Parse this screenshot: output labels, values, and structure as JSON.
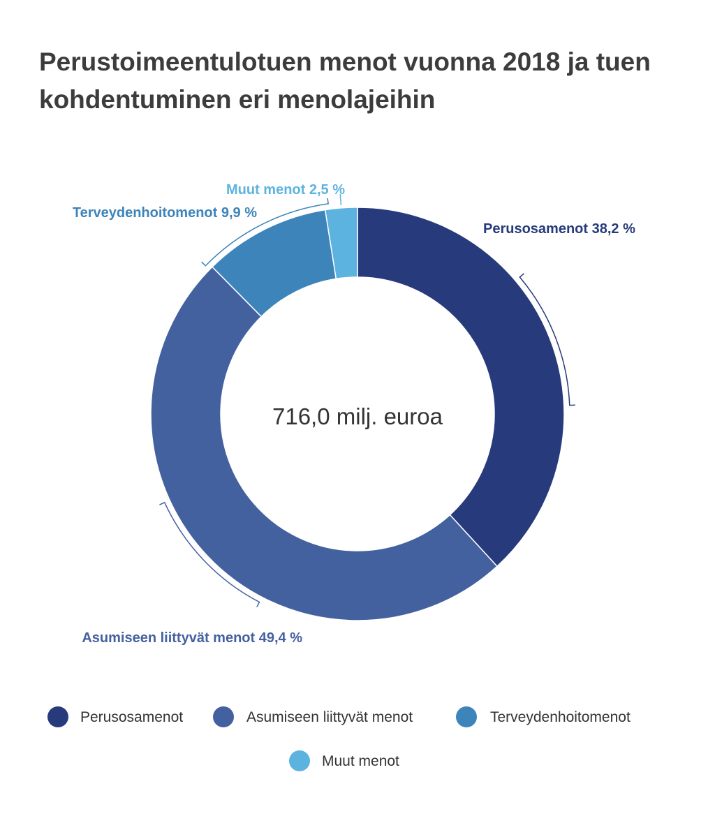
{
  "chart_data": {
    "type": "pie",
    "title": "Perustoimeentulotuen menot vuonna 2018 ja tuen kohdentuminen eri menolajeihin",
    "center_label": "716,0 milj. euroa",
    "unit": "%",
    "slices": [
      {
        "name": "Perusosamenot",
        "value": 38.2,
        "label": "Perusosamenot 38,2 %",
        "color": "#273a7b"
      },
      {
        "name": "Asumiseen liittyvät menot",
        "value": 49.4,
        "label": "Asumiseen liittyvät menot 49,4 %",
        "color": "#44619f"
      },
      {
        "name": "Terveydenhoitomenot",
        "value": 9.9,
        "label": "Terveydenhoitomenot 9,9 %",
        "color": "#3c84ba"
      },
      {
        "name": "Muut menot",
        "value": 2.5,
        "label": "Muut menot 2,5 %",
        "color": "#5db3e0"
      }
    ],
    "legend": [
      "Perusosamenot",
      "Asumiseen liittyvät menot",
      "Terveydenhoitomenot",
      "Muut menot"
    ],
    "legend_placement": "bottom"
  }
}
